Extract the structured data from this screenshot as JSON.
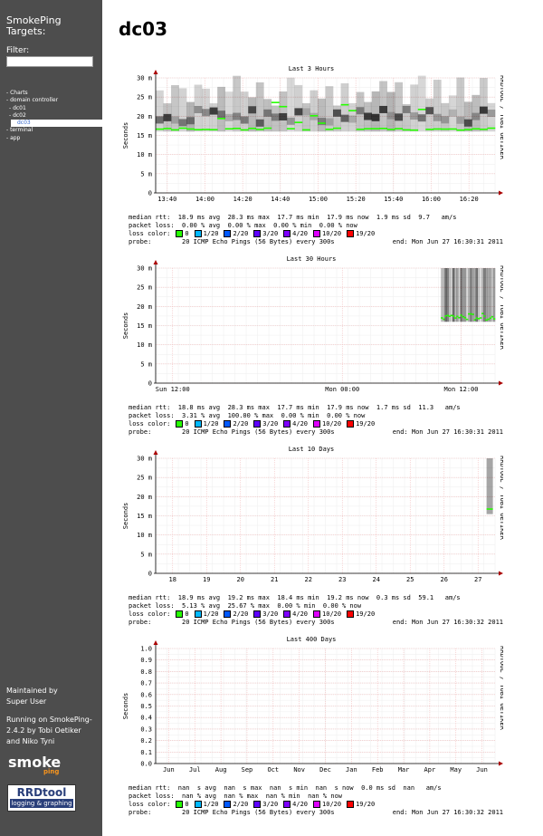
{
  "sidebar": {
    "title_line1": "SmokePing",
    "title_line2": "Targets:",
    "filter_label": "Filter:",
    "filter_value": "",
    "menu": [
      {
        "label": "- Charts",
        "level": 1
      },
      {
        "label": "- domain controller",
        "level": 1
      },
      {
        "label": "- dc01",
        "level": 2
      },
      {
        "label": "- dc02",
        "level": 2
      },
      {
        "label": "dc03",
        "level": 3,
        "active": true
      },
      {
        "label": "- terminal",
        "level": 1
      },
      {
        "label": "- app",
        "level": 1
      }
    ],
    "maintained_line1": "Maintained by",
    "maintained_line2": "Super User",
    "running": "Running on SmokePing-2.4.2 by Tobi Oetiker and Niko Tyni",
    "logo_smoke": "smoke",
    "logo_ping": "ping",
    "logo_rrd": "RRDtool",
    "logo_rrd_sub": "logging & graphing"
  },
  "page_title": "dc03",
  "side_label": "RRDTOOL / TOBI OETIKER",
  "ylabel": "Seconds",
  "loss_legend": [
    {
      "label": "0",
      "color": "#26ff00"
    },
    {
      "label": "1/20",
      "color": "#00b8ff"
    },
    {
      "label": "2/20",
      "color": "#0059ff"
    },
    {
      "label": "3/20",
      "color": "#5e00ff"
    },
    {
      "label": "4/20",
      "color": "#7e00ff"
    },
    {
      "label": "10/20",
      "color": "#dd00ff"
    },
    {
      "label": "19/20",
      "color": "#ff0000"
    }
  ],
  "graphs": [
    {
      "title": "Last 3 Hours",
      "yticks": [
        "0",
        "5 m",
        "10 m",
        "15 m",
        "20 m",
        "25 m",
        "30 m"
      ],
      "xticks": [
        "13:40",
        "14:00",
        "14:20",
        "14:40",
        "15:00",
        "15:20",
        "15:40",
        "16:00",
        "16:20"
      ],
      "median": "median rtt:  18.9 ms avg  28.3 ms max  17.7 ms min  17.9 ms now  1.9 ms sd  9.7   am/s",
      "loss": "packet loss:  0.00 % avg  0.00 % max  0.00 % min  0.00 % now",
      "loss_color_label": "loss color:",
      "probe": "probe:        20 ICMP Echo Pings (56 Bytes) every 300s",
      "end": "end: Mon Jun 27 16:30:31 2011"
    },
    {
      "title": "Last 30 Hours",
      "yticks": [
        "0",
        "5 m",
        "10 m",
        "15 m",
        "20 m",
        "25 m",
        "30 m"
      ],
      "xticks": [
        "Sun 12:00",
        "Mon 00:00",
        "Mon 12:00"
      ],
      "median": "median rtt:  18.8 ms avg  28.3 ms max  17.7 ms min  17.9 ms now  1.7 ms sd  11.3   am/s",
      "loss": "packet loss:  3.31 % avg  100.00 % max  0.00 % min  0.00 % now",
      "loss_color_label": "loss color:",
      "probe": "probe:        20 ICMP Echo Pings (56 Bytes) every 300s",
      "end": "end: Mon Jun 27 16:30:31 2011"
    },
    {
      "title": "Last 10 Days",
      "yticks": [
        "0",
        "5 m",
        "10 m",
        "15 m",
        "20 m",
        "25 m",
        "30 m"
      ],
      "xticks": [
        "18",
        "19",
        "20",
        "21",
        "22",
        "23",
        "24",
        "25",
        "26",
        "27"
      ],
      "median": "median rtt:  18.9 ms avg  19.2 ms max  18.4 ms min  19.2 ms now  0.3 ms sd  59.1   am/s",
      "loss": "packet loss:  5.13 % avg  25.67 % max  0.00 % min  0.00 % now",
      "loss_color_label": "loss color:",
      "probe": "probe:        20 ICMP Echo Pings (56 Bytes) every 300s",
      "end": "end: Mon Jun 27 16:30:32 2011"
    },
    {
      "title": "Last 400 Days",
      "yticks": [
        "0.0",
        "0.1",
        "0.2",
        "0.3",
        "0.4",
        "0.5",
        "0.6",
        "0.7",
        "0.8",
        "0.9",
        "1.0"
      ],
      "xticks": [
        "Jun",
        "Jul",
        "Aug",
        "Sep",
        "Oct",
        "Nov",
        "Dec",
        "Jan",
        "Feb",
        "Mar",
        "Apr",
        "May",
        "Jun"
      ],
      "median": "median rtt:  nan  s avg  nan  s max  nan  s min  nan  s now  0.0 ms sd  nan   am/s",
      "loss": "packet loss:  nan % avg  nan % max  nan % min  nan % now",
      "loss_color_label": "loss color:",
      "probe": "probe:        20 ICMP Echo Pings (56 Bytes) every 300s",
      "end": "end: Mon Jun 27 16:30:32 2011"
    }
  ]
}
